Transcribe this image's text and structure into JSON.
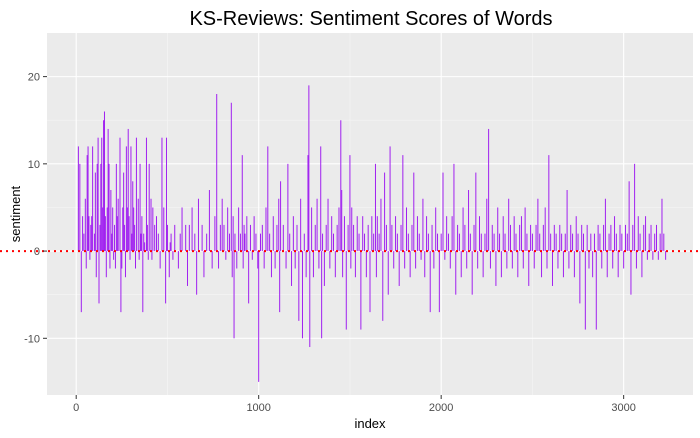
{
  "chart_data": {
    "type": "bar",
    "title": "KS-Reviews: Sentiment Scores of Words",
    "xlabel": "index",
    "ylabel": "sentiment",
    "xlim": [
      -160,
      3380
    ],
    "ylim": [
      -16.5,
      25
    ],
    "x_ticks": [
      0,
      1000,
      2000,
      3000
    ],
    "y_ticks": [
      -10,
      0,
      10,
      20
    ],
    "x_tick_labels": [
      "0",
      "1000",
      "2000",
      "3000"
    ],
    "y_tick_labels": [
      "-10",
      "0",
      "10",
      "20"
    ],
    "grid": true,
    "bar_color": "#a020f0",
    "background_color": "#ebebeb",
    "reference_line": {
      "y": 0,
      "style": "dotted",
      "color": "#ff0000"
    },
    "bars": [
      [
        12,
        12
      ],
      [
        20,
        10
      ],
      [
        28,
        -7
      ],
      [
        35,
        4
      ],
      [
        42,
        2
      ],
      [
        50,
        6
      ],
      [
        55,
        -2
      ],
      [
        60,
        11
      ],
      [
        65,
        12
      ],
      [
        70,
        4
      ],
      [
        75,
        -1
      ],
      [
        80,
        3
      ],
      [
        85,
        4
      ],
      [
        90,
        12
      ],
      [
        100,
        2
      ],
      [
        105,
        9
      ],
      [
        110,
        -3
      ],
      [
        115,
        10
      ],
      [
        120,
        13
      ],
      [
        125,
        -6
      ],
      [
        130,
        3
      ],
      [
        135,
        10
      ],
      [
        140,
        13
      ],
      [
        145,
        5
      ],
      [
        150,
        15
      ],
      [
        155,
        16
      ],
      [
        160,
        4
      ],
      [
        165,
        -3
      ],
      [
        170,
        5
      ],
      [
        175,
        14
      ],
      [
        180,
        10
      ],
      [
        185,
        -2
      ],
      [
        190,
        7
      ],
      [
        195,
        2
      ],
      [
        200,
        5
      ],
      [
        205,
        -1
      ],
      [
        210,
        3
      ],
      [
        215,
        -2
      ],
      [
        220,
        10
      ],
      [
        225,
        4
      ],
      [
        230,
        6
      ],
      [
        240,
        13
      ],
      [
        245,
        -7
      ],
      [
        250,
        -2
      ],
      [
        255,
        5
      ],
      [
        260,
        9
      ],
      [
        265,
        3
      ],
      [
        270,
        -3
      ],
      [
        275,
        12
      ],
      [
        280,
        5
      ],
      [
        285,
        14
      ],
      [
        290,
        4
      ],
      [
        295,
        -1
      ],
      [
        300,
        12
      ],
      [
        305,
        2
      ],
      [
        310,
        8
      ],
      [
        315,
        5
      ],
      [
        320,
        3
      ],
      [
        325,
        -2
      ],
      [
        330,
        13
      ],
      [
        340,
        6
      ],
      [
        345,
        -1
      ],
      [
        350,
        10
      ],
      [
        355,
        2
      ],
      [
        360,
        4
      ],
      [
        365,
        -7
      ],
      [
        370,
        2
      ],
      [
        375,
        1
      ],
      [
        385,
        13
      ],
      [
        390,
        3
      ],
      [
        395,
        -1
      ],
      [
        400,
        10
      ],
      [
        410,
        6
      ],
      [
        415,
        -1
      ],
      [
        420,
        5
      ],
      [
        430,
        3
      ],
      [
        440,
        4
      ],
      [
        450,
        2
      ],
      [
        460,
        -2
      ],
      [
        470,
        13
      ],
      [
        480,
        5
      ],
      [
        490,
        -6
      ],
      [
        495,
        13
      ],
      [
        500,
        3
      ],
      [
        510,
        -3
      ],
      [
        515,
        1
      ],
      [
        520,
        2
      ],
      [
        530,
        -1
      ],
      [
        540,
        3
      ],
      [
        560,
        -2
      ],
      [
        570,
        2
      ],
      [
        580,
        5
      ],
      [
        600,
        3
      ],
      [
        610,
        -4
      ],
      [
        620,
        3
      ],
      [
        635,
        5
      ],
      [
        650,
        2
      ],
      [
        660,
        -5
      ],
      [
        670,
        6
      ],
      [
        690,
        3
      ],
      [
        700,
        -3
      ],
      [
        715,
        2
      ],
      [
        730,
        7
      ],
      [
        745,
        -2
      ],
      [
        760,
        4
      ],
      [
        770,
        18
      ],
      [
        780,
        -2
      ],
      [
        790,
        3
      ],
      [
        800,
        6
      ],
      [
        810,
        3
      ],
      [
        820,
        -1
      ],
      [
        830,
        5
      ],
      [
        840,
        2
      ],
      [
        850,
        17
      ],
      [
        855,
        -3
      ],
      [
        860,
        4
      ],
      [
        865,
        -10
      ],
      [
        870,
        2
      ],
      [
        880,
        -2
      ],
      [
        890,
        5
      ],
      [
        900,
        2
      ],
      [
        910,
        11
      ],
      [
        915,
        -2
      ],
      [
        920,
        3
      ],
      [
        925,
        2
      ],
      [
        935,
        4
      ],
      [
        945,
        -6
      ],
      [
        955,
        3
      ],
      [
        965,
        -1
      ],
      [
        975,
        4
      ],
      [
        985,
        2
      ],
      [
        995,
        -2
      ],
      [
        1000,
        -15
      ],
      [
        1010,
        2
      ],
      [
        1020,
        3
      ],
      [
        1030,
        -2
      ],
      [
        1040,
        5
      ],
      [
        1050,
        12
      ],
      [
        1060,
        2
      ],
      [
        1070,
        -3
      ],
      [
        1080,
        4
      ],
      [
        1090,
        -2
      ],
      [
        1100,
        3
      ],
      [
        1110,
        6
      ],
      [
        1115,
        -7
      ],
      [
        1120,
        8
      ],
      [
        1135,
        3
      ],
      [
        1150,
        -2
      ],
      [
        1160,
        10
      ],
      [
        1170,
        2
      ],
      [
        1180,
        -4
      ],
      [
        1190,
        4
      ],
      [
        1200,
        -2
      ],
      [
        1210,
        3
      ],
      [
        1220,
        -8
      ],
      [
        1230,
        6
      ],
      [
        1240,
        -10
      ],
      [
        1250,
        2
      ],
      [
        1260,
        -3
      ],
      [
        1270,
        11
      ],
      [
        1275,
        19
      ],
      [
        1280,
        -11
      ],
      [
        1290,
        5
      ],
      [
        1300,
        -3
      ],
      [
        1310,
        3
      ],
      [
        1320,
        6
      ],
      [
        1330,
        -2
      ],
      [
        1340,
        12
      ],
      [
        1345,
        -10
      ],
      [
        1350,
        2
      ],
      [
        1360,
        -4
      ],
      [
        1370,
        3
      ],
      [
        1380,
        6
      ],
      [
        1390,
        -2
      ],
      [
        1400,
        4
      ],
      [
        1410,
        2
      ],
      [
        1420,
        -3
      ],
      [
        1430,
        3
      ],
      [
        1440,
        5
      ],
      [
        1450,
        15
      ],
      [
        1455,
        7
      ],
      [
        1460,
        -3
      ],
      [
        1470,
        4
      ],
      [
        1480,
        -9
      ],
      [
        1490,
        3
      ],
      [
        1500,
        11
      ],
      [
        1505,
        -2
      ],
      [
        1510,
        5
      ],
      [
        1520,
        3
      ],
      [
        1530,
        -3
      ],
      [
        1540,
        4
      ],
      [
        1550,
        2
      ],
      [
        1560,
        -9
      ],
      [
        1570,
        4
      ],
      [
        1580,
        2
      ],
      [
        1590,
        -3
      ],
      [
        1600,
        3
      ],
      [
        1610,
        -7
      ],
      [
        1620,
        4
      ],
      [
        1630,
        2
      ],
      [
        1640,
        10
      ],
      [
        1645,
        -3
      ],
      [
        1650,
        4
      ],
      [
        1660,
        2
      ],
      [
        1670,
        6
      ],
      [
        1680,
        -8
      ],
      [
        1690,
        9
      ],
      [
        1700,
        3
      ],
      [
        1710,
        -5
      ],
      [
        1720,
        12
      ],
      [
        1730,
        3
      ],
      [
        1740,
        -2
      ],
      [
        1750,
        4
      ],
      [
        1760,
        2
      ],
      [
        1770,
        -4
      ],
      [
        1780,
        3
      ],
      [
        1790,
        11
      ],
      [
        1800,
        -2
      ],
      [
        1810,
        5
      ],
      [
        1820,
        2
      ],
      [
        1830,
        -3
      ],
      [
        1840,
        3
      ],
      [
        1850,
        9
      ],
      [
        1860,
        -2
      ],
      [
        1870,
        4
      ],
      [
        1880,
        2
      ],
      [
        1890,
        -1
      ],
      [
        1900,
        6
      ],
      [
        1910,
        -3
      ],
      [
        1920,
        4
      ],
      [
        1930,
        2
      ],
      [
        1940,
        -7
      ],
      [
        1950,
        3
      ],
      [
        1960,
        -2
      ],
      [
        1970,
        5
      ],
      [
        1980,
        2
      ],
      [
        1990,
        -7
      ],
      [
        2000,
        2
      ],
      [
        2010,
        9
      ],
      [
        2020,
        -1
      ],
      [
        2030,
        4
      ],
      [
        2040,
        2
      ],
      [
        2050,
        -2
      ],
      [
        2060,
        4
      ],
      [
        2070,
        10
      ],
      [
        2080,
        -5
      ],
      [
        2090,
        3
      ],
      [
        2100,
        2
      ],
      [
        2110,
        -3
      ],
      [
        2120,
        5
      ],
      [
        2130,
        3
      ],
      [
        2140,
        -2
      ],
      [
        2150,
        7
      ],
      [
        2160,
        2
      ],
      [
        2170,
        -5
      ],
      [
        2180,
        3
      ],
      [
        2190,
        9
      ],
      [
        2200,
        -2
      ],
      [
        2210,
        4
      ],
      [
        2220,
        2
      ],
      [
        2230,
        -3
      ],
      [
        2240,
        2
      ],
      [
        2250,
        6
      ],
      [
        2260,
        14
      ],
      [
        2270,
        -2
      ],
      [
        2280,
        3
      ],
      [
        2290,
        2
      ],
      [
        2300,
        -4
      ],
      [
        2310,
        5
      ],
      [
        2320,
        2
      ],
      [
        2330,
        -3
      ],
      [
        2340,
        4
      ],
      [
        2350,
        2
      ],
      [
        2360,
        -2
      ],
      [
        2370,
        6
      ],
      [
        2380,
        3
      ],
      [
        2390,
        -2
      ],
      [
        2400,
        4
      ],
      [
        2410,
        2
      ],
      [
        2420,
        -3
      ],
      [
        2430,
        3
      ],
      [
        2440,
        4
      ],
      [
        2450,
        -2
      ],
      [
        2460,
        5
      ],
      [
        2470,
        2
      ],
      [
        2480,
        -4
      ],
      [
        2490,
        3
      ],
      [
        2500,
        2
      ],
      [
        2510,
        -2
      ],
      [
        2520,
        3
      ],
      [
        2530,
        6
      ],
      [
        2540,
        2
      ],
      [
        2550,
        -3
      ],
      [
        2560,
        3
      ],
      [
        2570,
        5
      ],
      [
        2580,
        -2
      ],
      [
        2590,
        11
      ],
      [
        2600,
        2
      ],
      [
        2610,
        -4
      ],
      [
        2620,
        3
      ],
      [
        2630,
        2
      ],
      [
        2640,
        -2
      ],
      [
        2650,
        3
      ],
      [
        2660,
        2
      ],
      [
        2670,
        -3
      ],
      [
        2680,
        2
      ],
      [
        2690,
        7
      ],
      [
        2700,
        -2
      ],
      [
        2710,
        3
      ],
      [
        2720,
        2
      ],
      [
        2730,
        -3
      ],
      [
        2740,
        4
      ],
      [
        2750,
        2
      ],
      [
        2760,
        -6
      ],
      [
        2770,
        3
      ],
      [
        2780,
        2
      ],
      [
        2790,
        -9
      ],
      [
        2800,
        3
      ],
      [
        2810,
        -2
      ],
      [
        2820,
        2
      ],
      [
        2830,
        -3
      ],
      [
        2840,
        2
      ],
      [
        2850,
        -9
      ],
      [
        2860,
        3
      ],
      [
        2870,
        2
      ],
      [
        2880,
        -2
      ],
      [
        2890,
        3
      ],
      [
        2900,
        6
      ],
      [
        2910,
        -3
      ],
      [
        2920,
        2
      ],
      [
        2930,
        3
      ],
      [
        2940,
        -2
      ],
      [
        2950,
        4
      ],
      [
        2960,
        2
      ],
      [
        2970,
        -3
      ],
      [
        2980,
        3
      ],
      [
        2990,
        2
      ],
      [
        3000,
        -2
      ],
      [
        3010,
        3
      ],
      [
        3020,
        2
      ],
      [
        3030,
        8
      ],
      [
        3040,
        -5
      ],
      [
        3050,
        3
      ],
      [
        3060,
        10
      ],
      [
        3070,
        -2
      ],
      [
        3080,
        4
      ],
      [
        3090,
        2
      ],
      [
        3100,
        -3
      ],
      [
        3110,
        3
      ],
      [
        3120,
        4
      ],
      [
        3130,
        -1
      ],
      [
        3140,
        2
      ],
      [
        3150,
        3
      ],
      [
        3160,
        -1
      ],
      [
        3170,
        2
      ],
      [
        3180,
        3
      ],
      [
        3190,
        -1
      ],
      [
        3200,
        2
      ],
      [
        3210,
        6
      ],
      [
        3220,
        2
      ],
      [
        3230,
        -1
      ]
    ]
  }
}
